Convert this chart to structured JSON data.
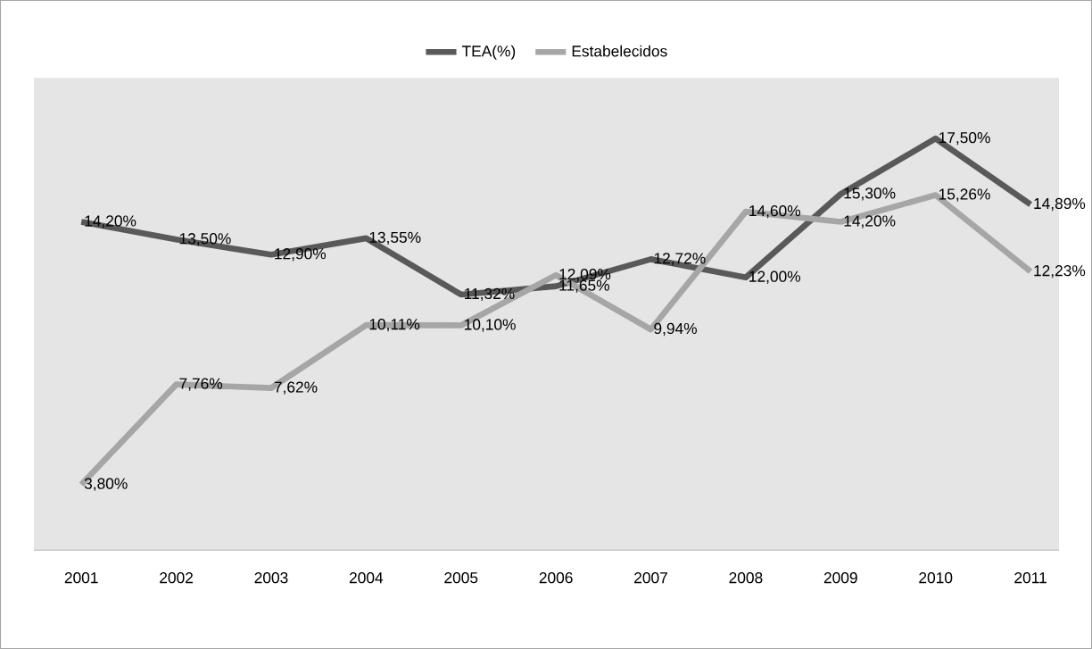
{
  "chart_data": {
    "type": "line",
    "legend": "top",
    "categories": [
      "2001",
      "2002",
      "2003",
      "2004",
      "2005",
      "2006",
      "2007",
      "2008",
      "2009",
      "2010",
      "2011"
    ],
    "series": [
      {
        "name": "TEA(%)",
        "color": "#595959",
        "values": [
          14.2,
          13.5,
          12.9,
          13.55,
          11.32,
          11.65,
          12.72,
          12.0,
          15.3,
          17.5,
          14.89
        ],
        "value_labels": [
          "14,20%",
          "13,50%",
          "12,90%",
          "13,55%",
          "11,32%",
          "11,65%",
          "12,72%",
          "12,00%",
          "15,30%",
          "17,50%",
          "14,89%"
        ]
      },
      {
        "name": "Estabelecidos",
        "color": "#a6a6a6",
        "values": [
          3.8,
          7.76,
          7.62,
          10.11,
          10.1,
          12.09,
          9.94,
          14.6,
          14.2,
          15.26,
          12.23
        ],
        "value_labels": [
          "3,80%",
          "7,76%",
          "7,62%",
          "10,11%",
          "10,10%",
          "12,09%",
          "9,94%",
          "14,60%",
          "14,20%",
          "15,26%",
          "12,23%"
        ]
      }
    ]
  }
}
